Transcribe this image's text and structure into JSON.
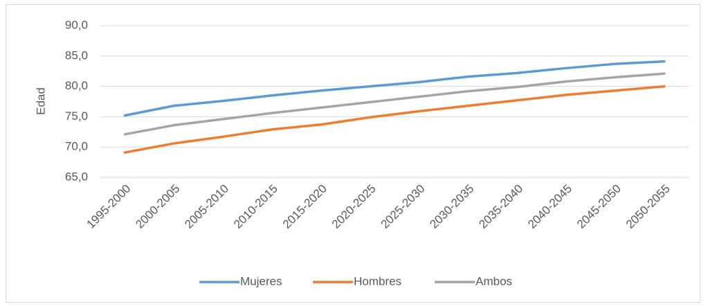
{
  "chart_data": {
    "type": "line",
    "y_label": "Edad",
    "categories": [
      "1995-2000",
      "2000-2005",
      "2005-2010",
      "2010-2015",
      "2015-2020",
      "2020-2025",
      "2025-2030",
      "2030-2035",
      "2035-2040",
      "2040-2045",
      "2045-2050",
      "2050-2055"
    ],
    "series": [
      {
        "name": "Mujeres",
        "color": "#5b9bd5",
        "values": [
          75.2,
          76.8,
          77.6,
          78.5,
          79.3,
          80.0,
          80.7,
          81.6,
          82.2,
          83.0,
          83.7,
          84.1
        ]
      },
      {
        "name": "Hombres",
        "color": "#ed7d31",
        "values": [
          69.1,
          70.6,
          71.7,
          72.9,
          73.7,
          74.9,
          75.9,
          76.8,
          77.7,
          78.6,
          79.3,
          80.0
        ]
      },
      {
        "name": "Ambos",
        "color": "#a5a5a5",
        "values": [
          72.1,
          73.6,
          74.6,
          75.6,
          76.5,
          77.4,
          78.3,
          79.2,
          79.9,
          80.8,
          81.5,
          82.1
        ]
      }
    ],
    "ylim": [
      65,
      90
    ],
    "yticks": [
      {
        "value": 65,
        "label": "65,0"
      },
      {
        "value": 70,
        "label": "70,0"
      },
      {
        "value": 75,
        "label": "75,0"
      },
      {
        "value": 80,
        "label": "80,0"
      },
      {
        "value": 85,
        "label": "85,0"
      },
      {
        "value": 90,
        "label": "90,0"
      }
    ],
    "grid": true,
    "legend": "bottom"
  }
}
